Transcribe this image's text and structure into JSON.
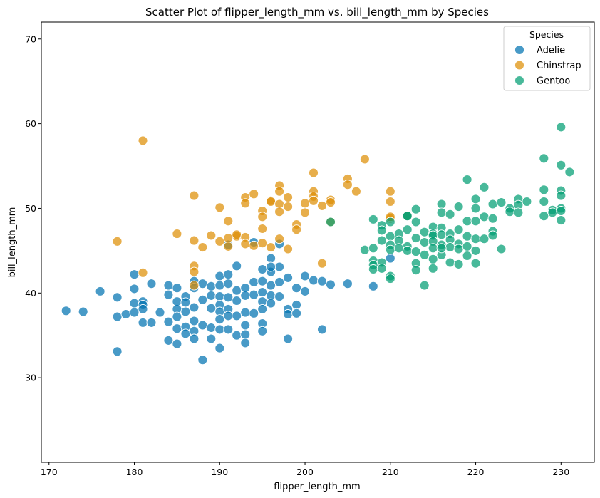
{
  "chart_data": {
    "type": "scatter",
    "title": "Scatter Plot of flipper_length_mm vs. bill_length_mm by Species",
    "xlabel": "flipper_length_mm",
    "ylabel": "bill_length_mm",
    "xlim": [
      169.1,
      233.9
    ],
    "ylim": [
      20.0,
      72.0
    ],
    "xticks": [
      170,
      180,
      190,
      200,
      210,
      220,
      230
    ],
    "yticks": [
      30,
      40,
      50,
      60,
      70
    ],
    "grid": false,
    "legend": {
      "title": "Species",
      "position": "top-right"
    },
    "series": [
      {
        "name": "Adelie",
        "color": "#0173b2",
        "points": [
          [
            172,
            37.9
          ],
          [
            174,
            37.8
          ],
          [
            176,
            40.2
          ],
          [
            178,
            39.5
          ],
          [
            178,
            37.2
          ],
          [
            178,
            33.1
          ],
          [
            179,
            37.5
          ],
          [
            180,
            42.2
          ],
          [
            180,
            40.5
          ],
          [
            180,
            38.8
          ],
          [
            180,
            37.7
          ],
          [
            181,
            39.0
          ],
          [
            181,
            38.6
          ],
          [
            181,
            36.5
          ],
          [
            181,
            38.1
          ],
          [
            182,
            41.1
          ],
          [
            182,
            36.5
          ],
          [
            183,
            37.7
          ],
          [
            184,
            40.9
          ],
          [
            184,
            39.8
          ],
          [
            184,
            36.6
          ],
          [
            184,
            34.4
          ],
          [
            185,
            40.6
          ],
          [
            185,
            38.1
          ],
          [
            185,
            39.0
          ],
          [
            185,
            37.2
          ],
          [
            185,
            35.8
          ],
          [
            185,
            34.0
          ],
          [
            186,
            39.6
          ],
          [
            186,
            38.9
          ],
          [
            186,
            37.8
          ],
          [
            186,
            36.0
          ],
          [
            186,
            35.2
          ],
          [
            187,
            41.4
          ],
          [
            187,
            40.6
          ],
          [
            187,
            38.3
          ],
          [
            187,
            36.7
          ],
          [
            187,
            35.5
          ],
          [
            187,
            34.6
          ],
          [
            188,
            41.1
          ],
          [
            188,
            39.2
          ],
          [
            188,
            36.2
          ],
          [
            188,
            32.1
          ],
          [
            189,
            40.8
          ],
          [
            189,
            39.7
          ],
          [
            189,
            38.2
          ],
          [
            189,
            35.9
          ],
          [
            189,
            34.6
          ],
          [
            190,
            42.0
          ],
          [
            190,
            40.9
          ],
          [
            190,
            39.6
          ],
          [
            190,
            38.6
          ],
          [
            190,
            37.8
          ],
          [
            190,
            36.9
          ],
          [
            190,
            35.7
          ],
          [
            190,
            33.5
          ],
          [
            191,
            42.2
          ],
          [
            191,
            41.1
          ],
          [
            191,
            39.5
          ],
          [
            191,
            38.1
          ],
          [
            191,
            37.3
          ],
          [
            191,
            35.7
          ],
          [
            192,
            43.2
          ],
          [
            192,
            40.3
          ],
          [
            192,
            39.1
          ],
          [
            192,
            37.3
          ],
          [
            192,
            35.0
          ],
          [
            193,
            40.6
          ],
          [
            193,
            39.7
          ],
          [
            193,
            37.7
          ],
          [
            193,
            36.2
          ],
          [
            193,
            35.1
          ],
          [
            193,
            34.1
          ],
          [
            194,
            41.3
          ],
          [
            194,
            39.8
          ],
          [
            194,
            37.6
          ],
          [
            194,
            46.0
          ],
          [
            195,
            42.8
          ],
          [
            195,
            41.4
          ],
          [
            195,
            40.1
          ],
          [
            195,
            39.0
          ],
          [
            195,
            38.1
          ],
          [
            195,
            36.4
          ],
          [
            195,
            35.5
          ],
          [
            196,
            44.1
          ],
          [
            196,
            42.5
          ],
          [
            196,
            40.9
          ],
          [
            196,
            39.7
          ],
          [
            196,
            38.8
          ],
          [
            197,
            45.8
          ],
          [
            197,
            43.1
          ],
          [
            197,
            41.3
          ],
          [
            197,
            39.6
          ],
          [
            198,
            41.8
          ],
          [
            198,
            38.1
          ],
          [
            198,
            37.5
          ],
          [
            198,
            34.6
          ],
          [
            199,
            40.6
          ],
          [
            199,
            38.6
          ],
          [
            199,
            37.6
          ],
          [
            200,
            42.0
          ],
          [
            200,
            40.2
          ],
          [
            201,
            41.5
          ],
          [
            202,
            41.4
          ],
          [
            202,
            35.7
          ],
          [
            203,
            41.0
          ],
          [
            205,
            41.1
          ],
          [
            208,
            40.8
          ],
          [
            210,
            44.1
          ],
          [
            191,
            45.7
          ],
          [
            196,
            43.1
          ]
        ]
      },
      {
        "name": "Chinstrap",
        "color": "#de8f05",
        "points": [
          [
            178,
            46.1
          ],
          [
            181,
            58.0
          ],
          [
            181,
            42.4
          ],
          [
            185,
            47.0
          ],
          [
            187,
            51.5
          ],
          [
            187,
            46.2
          ],
          [
            187,
            43.2
          ],
          [
            187,
            42.5
          ],
          [
            187,
            40.9
          ],
          [
            188,
            45.4
          ],
          [
            189,
            46.8
          ],
          [
            190,
            50.1
          ],
          [
            190,
            46.1
          ],
          [
            191,
            48.5
          ],
          [
            191,
            46.5
          ],
          [
            191,
            45.5
          ],
          [
            192,
            46.7
          ],
          [
            192,
            46.9
          ],
          [
            193,
            51.3
          ],
          [
            193,
            50.6
          ],
          [
            193,
            46.6
          ],
          [
            193,
            45.8
          ],
          [
            194,
            51.7
          ],
          [
            194,
            45.6
          ],
          [
            195,
            49.7
          ],
          [
            195,
            49.0
          ],
          [
            195,
            47.6
          ],
          [
            195,
            45.9
          ],
          [
            196,
            50.9
          ],
          [
            196,
            50.8
          ],
          [
            196,
            45.4
          ],
          [
            197,
            52.7
          ],
          [
            197,
            52.0
          ],
          [
            197,
            50.5
          ],
          [
            197,
            49.6
          ],
          [
            197,
            46.4
          ],
          [
            198,
            51.3
          ],
          [
            198,
            50.2
          ],
          [
            198,
            45.2
          ],
          [
            199,
            48.1
          ],
          [
            199,
            47.5
          ],
          [
            200,
            50.6
          ],
          [
            200,
            49.5
          ],
          [
            201,
            54.2
          ],
          [
            201,
            52.0
          ],
          [
            201,
            51.4
          ],
          [
            201,
            50.9
          ],
          [
            202,
            50.3
          ],
          [
            202,
            43.5
          ],
          [
            203,
            51.0
          ],
          [
            203,
            50.7
          ],
          [
            205,
            53.5
          ],
          [
            205,
            52.8
          ],
          [
            206,
            52.0
          ],
          [
            207,
            55.8
          ],
          [
            210,
            52.0
          ],
          [
            210,
            50.8
          ],
          [
            210,
            48.8
          ],
          [
            212,
            49.1
          ],
          [
            203,
            48.4
          ],
          [
            210,
            49.0
          ]
        ]
      },
      {
        "name": "Gentoo",
        "color": "#029e73",
        "points": [
          [
            203,
            48.4
          ],
          [
            207,
            45.1
          ],
          [
            208,
            48.7
          ],
          [
            208,
            45.3
          ],
          [
            208,
            43.8
          ],
          [
            208,
            43.3
          ],
          [
            208,
            42.8
          ],
          [
            209,
            48.0
          ],
          [
            209,
            47.4
          ],
          [
            209,
            46.2
          ],
          [
            209,
            43.6
          ],
          [
            209,
            42.9
          ],
          [
            210,
            48.4
          ],
          [
            210,
            46.7
          ],
          [
            210,
            45.7
          ],
          [
            210,
            45.1
          ],
          [
            210,
            42.0
          ],
          [
            210,
            41.7
          ],
          [
            211,
            47.0
          ],
          [
            211,
            46.2
          ],
          [
            212,
            49.1
          ],
          [
            212,
            47.5
          ],
          [
            212,
            45.5
          ],
          [
            212,
            45.0
          ],
          [
            213,
            49.9
          ],
          [
            213,
            48.4
          ],
          [
            213,
            46.5
          ],
          [
            213,
            44.9
          ],
          [
            213,
            43.5
          ],
          [
            213,
            42.7
          ],
          [
            214,
            47.2
          ],
          [
            214,
            46.0
          ],
          [
            214,
            44.5
          ],
          [
            214,
            40.9
          ],
          [
            215,
            47.8
          ],
          [
            215,
            47.0
          ],
          [
            215,
            46.8
          ],
          [
            215,
            46.1
          ],
          [
            215,
            45.3
          ],
          [
            215,
            44.0
          ],
          [
            215,
            42.9
          ],
          [
            216,
            50.5
          ],
          [
            216,
            49.5
          ],
          [
            216,
            47.7
          ],
          [
            216,
            46.9
          ],
          [
            216,
            45.7
          ],
          [
            216,
            44.5
          ],
          [
            217,
            49.3
          ],
          [
            217,
            47.0
          ],
          [
            217,
            46.3
          ],
          [
            217,
            45.4
          ],
          [
            217,
            43.6
          ],
          [
            218,
            50.2
          ],
          [
            218,
            47.5
          ],
          [
            218,
            45.8
          ],
          [
            218,
            45.2
          ],
          [
            218,
            43.4
          ],
          [
            219,
            53.4
          ],
          [
            219,
            48.5
          ],
          [
            219,
            46.7
          ],
          [
            219,
            45.5
          ],
          [
            219,
            44.4
          ],
          [
            220,
            51.1
          ],
          [
            220,
            50.0
          ],
          [
            220,
            48.5
          ],
          [
            220,
            46.4
          ],
          [
            220,
            45.0
          ],
          [
            220,
            43.5
          ],
          [
            221,
            52.5
          ],
          [
            221,
            49.0
          ],
          [
            221,
            46.4
          ],
          [
            222,
            50.5
          ],
          [
            222,
            48.8
          ],
          [
            222,
            47.3
          ],
          [
            222,
            46.8
          ],
          [
            223,
            50.7
          ],
          [
            223,
            45.2
          ],
          [
            224,
            50.0
          ],
          [
            224,
            49.6
          ],
          [
            225,
            51.1
          ],
          [
            225,
            50.4
          ],
          [
            225,
            49.5
          ],
          [
            226,
            50.8
          ],
          [
            228,
            55.9
          ],
          [
            228,
            52.2
          ],
          [
            228,
            50.8
          ],
          [
            228,
            49.1
          ],
          [
            229,
            49.8
          ],
          [
            229,
            49.5
          ],
          [
            230,
            59.6
          ],
          [
            230,
            55.1
          ],
          [
            230,
            52.1
          ],
          [
            230,
            51.5
          ],
          [
            230,
            50.0
          ],
          [
            230,
            49.7
          ],
          [
            230,
            48.6
          ],
          [
            231,
            54.3
          ],
          [
            212,
            49.1
          ],
          [
            216,
            45.3
          ],
          [
            211,
            45.3
          ]
        ]
      }
    ]
  }
}
